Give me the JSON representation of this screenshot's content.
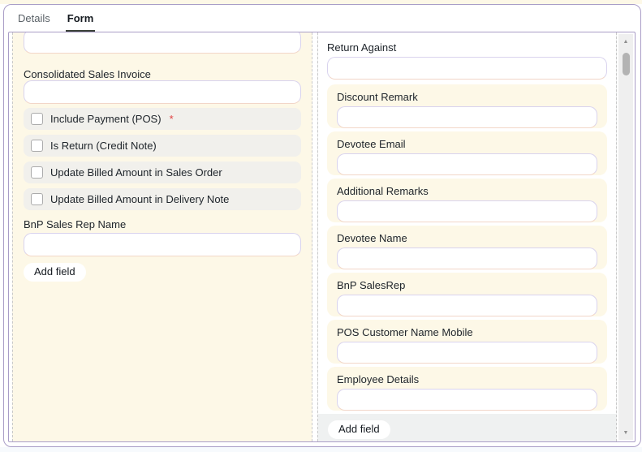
{
  "tabs": [
    {
      "label": "Details"
    },
    {
      "label": "Form"
    }
  ],
  "active_tab": "Form",
  "left_column": {
    "fields": [
      {
        "type": "input",
        "label": "Consolidated Sales Invoice",
        "value": ""
      },
      {
        "type": "checkbox",
        "label": "Include Payment (POS)",
        "checked": false,
        "required_marker": "*"
      },
      {
        "type": "checkbox",
        "label": "Is Return (Credit Note)",
        "checked": false
      },
      {
        "type": "checkbox",
        "label": "Update Billed Amount in Sales Order",
        "checked": false
      },
      {
        "type": "checkbox",
        "label": "Update Billed Amount in Delivery Note",
        "checked": false
      },
      {
        "type": "input",
        "label": "BnP Sales Rep Name",
        "value": ""
      }
    ],
    "add_field_label": "Add field"
  },
  "right_column": {
    "fields": [
      {
        "label": "Return Against",
        "custom": false,
        "value": ""
      },
      {
        "label": "Discount Remark",
        "custom": true,
        "value": ""
      },
      {
        "label": "Devotee Email",
        "custom": true,
        "value": ""
      },
      {
        "label": "Additional Remarks",
        "custom": true,
        "value": ""
      },
      {
        "label": "Devotee Name",
        "custom": true,
        "value": ""
      },
      {
        "label": "BnP SalesRep",
        "custom": true,
        "value": ""
      },
      {
        "label": "POS Customer Name Mobile",
        "custom": true,
        "value": ""
      },
      {
        "label": "Employee Details",
        "custom": true,
        "value": ""
      }
    ],
    "add_field_label": "Add field"
  },
  "icons": {
    "scroll_up": "▲",
    "scroll_down": "▼"
  },
  "colors": {
    "panel_border": "#a99dc7",
    "custom_field_highlight": "#fdf8e7",
    "checkbox_row_bg": "#f1f0ec",
    "column_bg_gray": "#eff1f1",
    "input_border": "#d9d3ee",
    "input_border_bottom": "#f2d6c8",
    "required": "#e24141",
    "active_tab_underline": "#3a4139"
  }
}
